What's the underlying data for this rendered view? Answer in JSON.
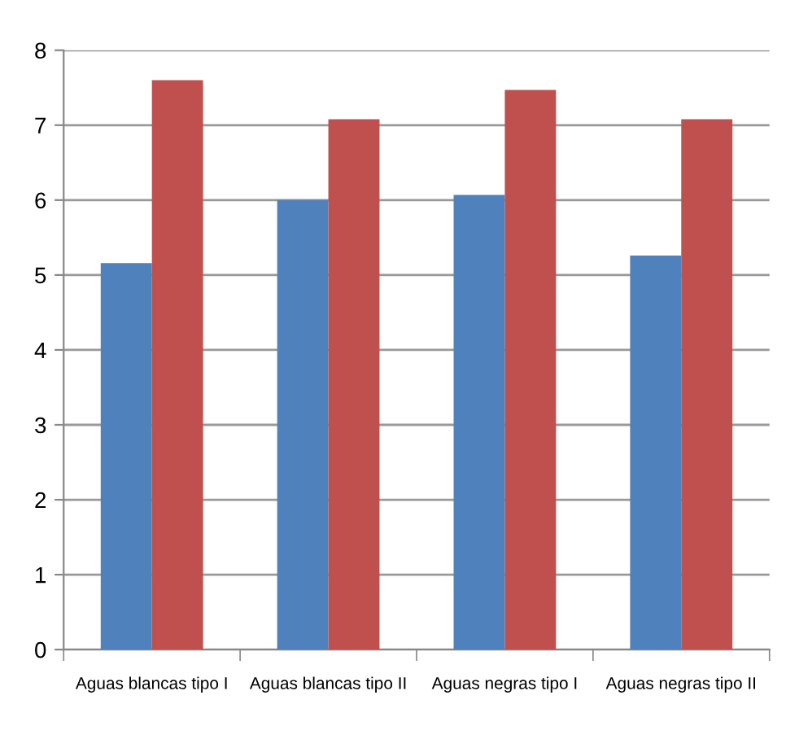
{
  "chart_data": {
    "type": "bar",
    "categories": [
      "Aguas blancas tipo I",
      "Aguas blancas tipo II",
      "Aguas negras tipo I",
      "Aguas negras tipo II"
    ],
    "series": [
      {
        "color": "#4f81bd",
        "values": [
          5.16,
          6.0,
          6.07,
          5.26
        ]
      },
      {
        "color": "#c0504d",
        "values": [
          7.6,
          7.08,
          7.47,
          7.08
        ]
      }
    ],
    "ylim": [
      0,
      8
    ],
    "yticks": [
      0,
      1,
      2,
      3,
      4,
      5,
      6,
      7,
      8
    ],
    "grid": "y",
    "legend": false
  }
}
